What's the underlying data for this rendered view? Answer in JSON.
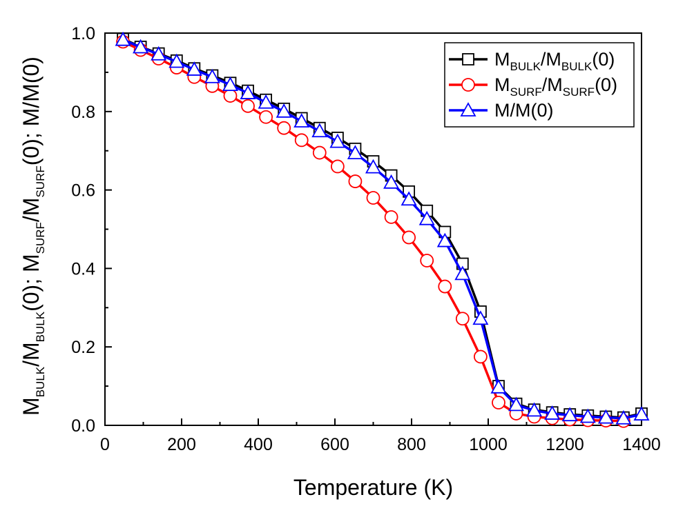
{
  "chart_data": {
    "type": "line",
    "xlabel": "Temperature (K)",
    "ylabel": {
      "parts": [
        {
          "text": "M",
          "sub": false
        },
        {
          "text": "BULK",
          "sub": true
        },
        {
          "text": "/M",
          "sub": false
        },
        {
          "text": "BULK",
          "sub": true
        },
        {
          "text": "(0); M",
          "sub": false
        },
        {
          "text": "SURF",
          "sub": true
        },
        {
          "text": "/M",
          "sub": false
        },
        {
          "text": "SURF",
          "sub": true
        },
        {
          "text": "(0); M/M(0)",
          "sub": false
        }
      ]
    },
    "xlim": [
      0,
      1400
    ],
    "ylim": [
      0.0,
      1.0
    ],
    "xticks": [
      "0",
      "200",
      "400",
      "600",
      "800",
      "1000",
      "1200",
      "1400"
    ],
    "yticks": [
      "0.0",
      "0.2",
      "0.4",
      "0.6",
      "0.8",
      "1.0"
    ],
    "legend_position": "top-right",
    "series": [
      {
        "name": "M_BULK/M_BULK(0)",
        "legend_parts": [
          {
            "text": "M",
            "sub": false
          },
          {
            "text": "BULK",
            "sub": true
          },
          {
            "text": "/M",
            "sub": false
          },
          {
            "text": "BULK",
            "sub": true
          },
          {
            "text": "(0)",
            "sub": false
          }
        ],
        "color": "#000000",
        "marker": "square",
        "x": [
          47,
          93,
          140,
          187,
          233,
          280,
          327,
          373,
          420,
          467,
          513,
          560,
          607,
          653,
          700,
          747,
          793,
          840,
          887,
          933,
          980,
          1027,
          1073,
          1120,
          1167,
          1213,
          1260,
          1307,
          1353,
          1400
        ],
        "y": [
          0.985,
          0.965,
          0.948,
          0.93,
          0.91,
          0.892,
          0.873,
          0.853,
          0.83,
          0.807,
          0.783,
          0.758,
          0.733,
          0.705,
          0.673,
          0.637,
          0.596,
          0.547,
          0.493,
          0.412,
          0.29,
          0.1,
          0.055,
          0.04,
          0.033,
          0.028,
          0.025,
          0.022,
          0.02,
          0.03
        ]
      },
      {
        "name": "M_SURF/M_SURF(0)",
        "legend_parts": [
          {
            "text": "M",
            "sub": false
          },
          {
            "text": "SURF",
            "sub": true
          },
          {
            "text": "/M",
            "sub": false
          },
          {
            "text": "SURF",
            "sub": true
          },
          {
            "text": "(0)",
            "sub": false
          }
        ],
        "color": "#ff0000",
        "marker": "circle",
        "x": [
          47,
          93,
          140,
          187,
          233,
          280,
          327,
          373,
          420,
          467,
          513,
          560,
          607,
          653,
          700,
          747,
          793,
          840,
          887,
          933,
          980,
          1027,
          1073,
          1120,
          1167,
          1213,
          1260,
          1307,
          1353
        ],
        "y": [
          0.978,
          0.957,
          0.935,
          0.912,
          0.888,
          0.865,
          0.84,
          0.814,
          0.786,
          0.758,
          0.727,
          0.695,
          0.66,
          0.622,
          0.58,
          0.531,
          0.479,
          0.42,
          0.354,
          0.272,
          0.175,
          0.058,
          0.03,
          0.022,
          0.018,
          0.015,
          0.013,
          0.012,
          0.011
        ]
      },
      {
        "name": "M/M(0)",
        "legend_parts": [
          {
            "text": "M/M(0)",
            "sub": false
          }
        ],
        "color": "#0000ff",
        "marker": "triangle",
        "x": [
          47,
          93,
          140,
          187,
          233,
          280,
          327,
          373,
          420,
          467,
          513,
          560,
          607,
          653,
          700,
          747,
          793,
          840,
          887,
          933,
          980,
          1027,
          1073,
          1120,
          1167,
          1213,
          1260,
          1307,
          1353,
          1400
        ],
        "y": [
          0.983,
          0.964,
          0.946,
          0.927,
          0.907,
          0.888,
          0.868,
          0.847,
          0.823,
          0.8,
          0.775,
          0.75,
          0.723,
          0.694,
          0.658,
          0.619,
          0.576,
          0.526,
          0.47,
          0.386,
          0.272,
          0.097,
          0.052,
          0.038,
          0.03,
          0.026,
          0.022,
          0.02,
          0.018,
          0.028
        ]
      }
    ]
  }
}
